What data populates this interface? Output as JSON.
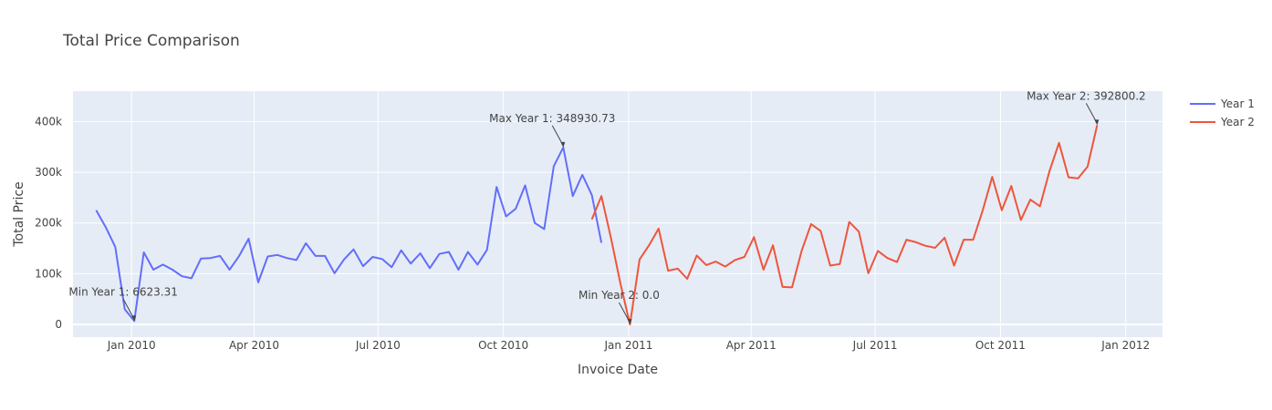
{
  "chart_data": {
    "type": "line",
    "title": "Total Price Comparison",
    "xlabel": "Invoice Date",
    "ylabel": "Total Price",
    "xlim": [
      "2009-11-19",
      "2012-01-28"
    ],
    "ylim": [
      -25000,
      460000
    ],
    "grid": true,
    "legend_position": "top-right",
    "x_ticks": [
      {
        "date": "2010-01-01",
        "label": "Jan 2010"
      },
      {
        "date": "2010-04-01",
        "label": "Apr 2010"
      },
      {
        "date": "2010-07-01",
        "label": "Jul 2010"
      },
      {
        "date": "2010-10-01",
        "label": "Oct 2010"
      },
      {
        "date": "2011-01-01",
        "label": "Jan 2011"
      },
      {
        "date": "2011-04-01",
        "label": "Apr 2011"
      },
      {
        "date": "2011-07-01",
        "label": "Jul 2011"
      },
      {
        "date": "2011-10-01",
        "label": "Oct 2011"
      },
      {
        "date": "2012-01-01",
        "label": "Jan 2012"
      }
    ],
    "y_ticks": [
      {
        "value": 0,
        "label": "0"
      },
      {
        "value": 100000,
        "label": "100k"
      },
      {
        "value": 200000,
        "label": "200k"
      },
      {
        "value": 300000,
        "label": "300k"
      },
      {
        "value": 400000,
        "label": "400k"
      }
    ],
    "series": [
      {
        "name": "Year 1",
        "color": "#636efa",
        "x": [
          "2009-12-06",
          "2009-12-13",
          "2009-12-20",
          "2009-12-27",
          "2010-01-03",
          "2010-01-10",
          "2010-01-17",
          "2010-01-24",
          "2010-01-31",
          "2010-02-07",
          "2010-02-14",
          "2010-02-21",
          "2010-02-28",
          "2010-03-07",
          "2010-03-14",
          "2010-03-21",
          "2010-03-28",
          "2010-04-04",
          "2010-04-11",
          "2010-04-18",
          "2010-04-25",
          "2010-05-02",
          "2010-05-09",
          "2010-05-16",
          "2010-05-23",
          "2010-05-30",
          "2010-06-06",
          "2010-06-13",
          "2010-06-20",
          "2010-06-27",
          "2010-07-04",
          "2010-07-11",
          "2010-07-18",
          "2010-07-25",
          "2010-08-01",
          "2010-08-08",
          "2010-08-15",
          "2010-08-22",
          "2010-08-29",
          "2010-09-05",
          "2010-09-12",
          "2010-09-19",
          "2010-09-26",
          "2010-10-03",
          "2010-10-10",
          "2010-10-17",
          "2010-10-24",
          "2010-10-31",
          "2010-11-07",
          "2010-11-14",
          "2010-11-21",
          "2010-11-28",
          "2010-12-05",
          "2010-12-12"
        ],
        "y": [
          225000,
          192000,
          153000,
          30000,
          6623.31,
          142000,
          108000,
          118000,
          108000,
          95000,
          91000,
          130000,
          131000,
          135000,
          108000,
          135000,
          169000,
          83000,
          134000,
          137000,
          131000,
          127000,
          160000,
          135000,
          135000,
          101000,
          128000,
          148000,
          115000,
          133000,
          129000,
          113000,
          146000,
          120000,
          140000,
          111000,
          139000,
          143000,
          108000,
          143000,
          118000,
          147000,
          271000,
          213000,
          228000,
          274000,
          200000,
          188000,
          312000,
          348930.73,
          253000,
          295000,
          255000,
          161000
        ]
      },
      {
        "name": "Year 2",
        "color": "#ef553b",
        "x": [
          "2010-12-05",
          "2010-12-12",
          "2010-12-19",
          "2010-12-26",
          "2011-01-02",
          "2011-01-09",
          "2011-01-16",
          "2011-01-23",
          "2011-01-30",
          "2011-02-06",
          "2011-02-13",
          "2011-02-20",
          "2011-02-27",
          "2011-03-06",
          "2011-03-13",
          "2011-03-20",
          "2011-03-27",
          "2011-04-03",
          "2011-04-10",
          "2011-04-17",
          "2011-04-24",
          "2011-05-01",
          "2011-05-08",
          "2011-05-15",
          "2011-05-22",
          "2011-05-29",
          "2011-06-05",
          "2011-06-12",
          "2011-06-19",
          "2011-06-26",
          "2011-07-03",
          "2011-07-10",
          "2011-07-17",
          "2011-07-24",
          "2011-07-31",
          "2011-08-07",
          "2011-08-14",
          "2011-08-21",
          "2011-08-28",
          "2011-09-04",
          "2011-09-11",
          "2011-09-18",
          "2011-09-25",
          "2011-10-02",
          "2011-10-09",
          "2011-10-16",
          "2011-10-23",
          "2011-10-30",
          "2011-11-06",
          "2011-11-13",
          "2011-11-20",
          "2011-11-27",
          "2011-12-04",
          "2011-12-11"
        ],
        "y": [
          207000,
          253000,
          171000,
          80000,
          0.0,
          128000,
          156000,
          189000,
          106000,
          110000,
          90000,
          136000,
          117000,
          124000,
          114000,
          127000,
          133000,
          172000,
          108000,
          156000,
          74000,
          73000,
          145000,
          198000,
          184000,
          116000,
          119000,
          202000,
          183000,
          101000,
          145000,
          131000,
          123000,
          167000,
          162000,
          155000,
          151000,
          171000,
          116000,
          167000,
          167000,
          225000,
          291000,
          225000,
          273000,
          206000,
          246000,
          233000,
          302000,
          358000,
          290000,
          288000,
          311000,
          392800.2
        ]
      }
    ],
    "annotations": [
      {
        "text": "Min Year 1: 6623.31",
        "x": "2010-01-03",
        "y": 6623.31
      },
      {
        "text": "Max Year 1: 348930.73",
        "x": "2010-11-14",
        "y": 348930.73
      },
      {
        "text": "Min Year 2: 0.0",
        "x": "2011-01-02",
        "y": 0.0
      },
      {
        "text": "Max Year 2: 392800.2",
        "x": "2011-12-11",
        "y": 392800.2
      }
    ]
  }
}
